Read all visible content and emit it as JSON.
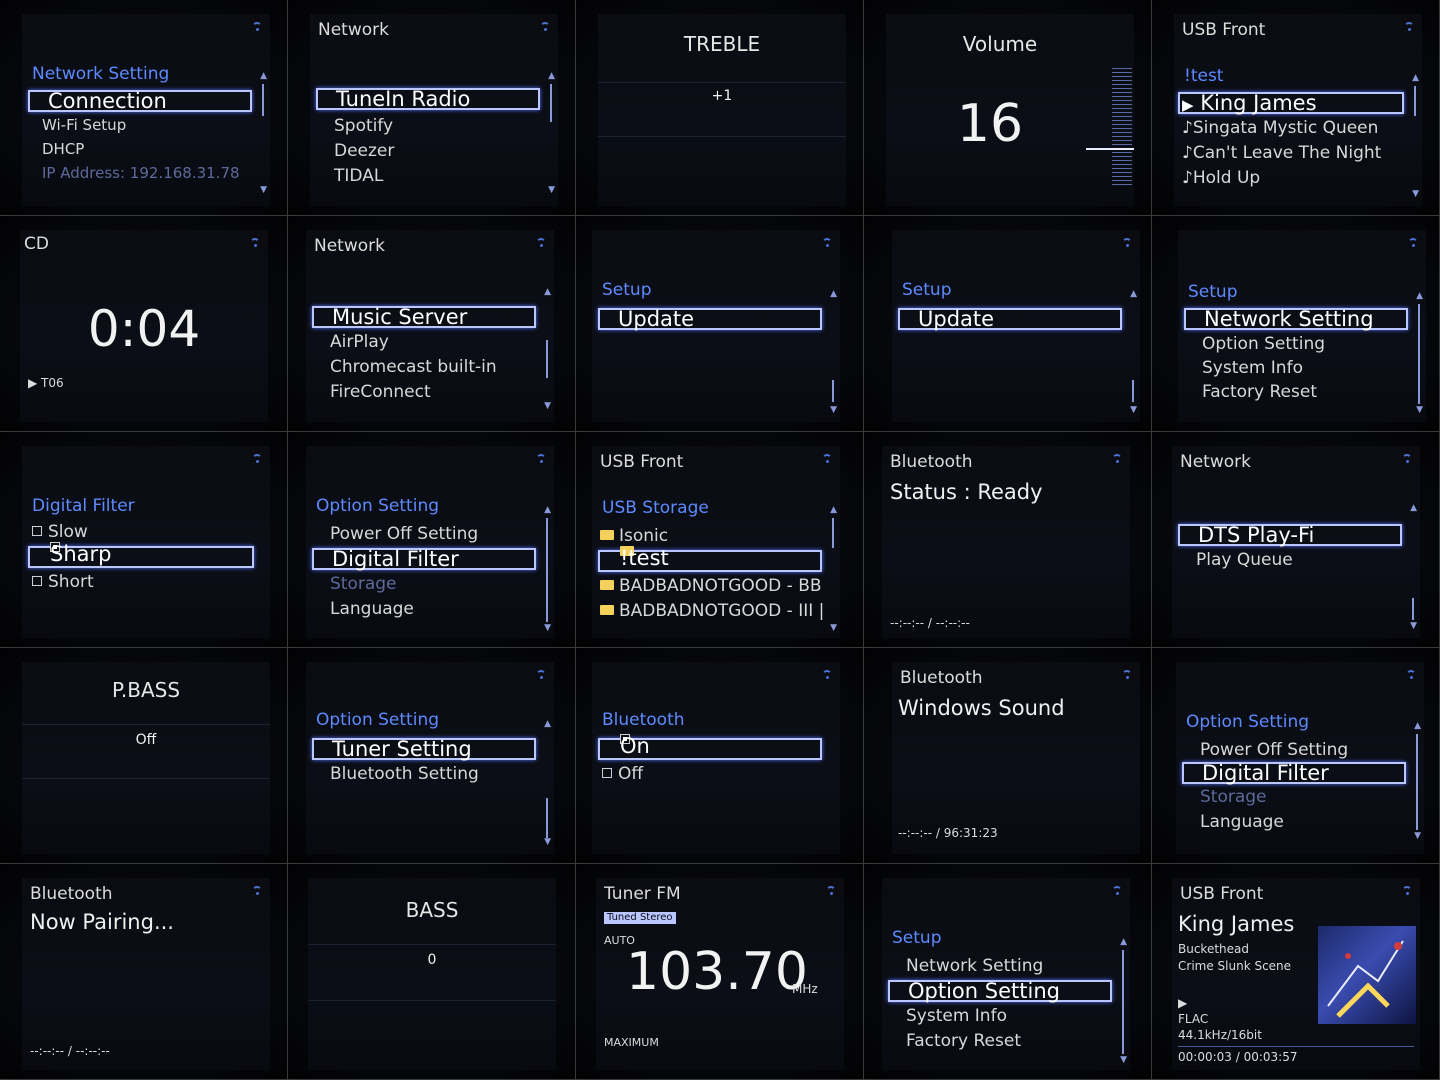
{
  "colors": {
    "accent": "#5e8aff",
    "highlight": "#b9c6ff",
    "background": "#000000"
  },
  "panels": {
    "p1": {
      "section": "Network Setting",
      "selected": "Connection",
      "items": [
        "Wi-Fi Setup",
        "DHCP"
      ],
      "ip": "IP Address: 192.168.31.78"
    },
    "p2": {
      "header": "Network",
      "selected": "TuneIn Radio",
      "items": [
        "Spotify",
        "Deezer",
        "TIDAL"
      ]
    },
    "p3": {
      "title": "TREBLE",
      "value": "+1"
    },
    "p4": {
      "title": "Volume",
      "value": "16"
    },
    "p5": {
      "header": "USB Front",
      "section": "!test",
      "selected": "King James",
      "items": [
        "Singata Mystic Queen",
        "Can't Leave The Night",
        "Hold Up"
      ]
    },
    "p6": {
      "header": "CD",
      "time": "0:04",
      "track": "T06"
    },
    "p7": {
      "header": "Network",
      "selected": "Music Server",
      "items": [
        "AirPlay",
        "Chromecast built-in",
        "FireConnect"
      ]
    },
    "p8": {
      "section": "Setup",
      "selected": "Update"
    },
    "p9": {
      "section": "Setup",
      "selected": "Update"
    },
    "p10": {
      "section": "Setup",
      "selected": "Network Setting",
      "items": [
        "Option Setting",
        "System Info",
        "Factory Reset"
      ]
    },
    "p11": {
      "section": "Digital Filter",
      "items": [
        "Slow",
        "Sharp",
        "Short"
      ]
    },
    "p12": {
      "section": "Option Setting",
      "item_above": "Power Off Setting",
      "selected": "Digital Filter",
      "storage": "Storage",
      "item_below": "Language"
    },
    "p13": {
      "header": "USB Front",
      "section": "USB Storage",
      "item_above": "Isonic",
      "selected": "!test",
      "items": [
        "BADBADNOTGOOD - BB",
        "BADBADNOTGOOD - III |"
      ]
    },
    "p14": {
      "header": "Bluetooth",
      "status": "Status : Ready",
      "time": "--:--:-- / --:--:--"
    },
    "p15": {
      "header": "Network",
      "selected": "DTS Play-Fi",
      "items": [
        "Play Queue"
      ]
    },
    "p16": {
      "title": "P.BASS",
      "value": "Off"
    },
    "p17": {
      "section": "Option Setting",
      "selected": "Tuner Setting",
      "items": [
        "Bluetooth Setting"
      ]
    },
    "p18": {
      "section": "Bluetooth",
      "selected": "On",
      "items": [
        "Off"
      ]
    },
    "p19": {
      "header": "Bluetooth",
      "device": "Windows Sound",
      "time": "--:--:-- / 96:31:23"
    },
    "p20": {
      "section": "Option Setting",
      "item_above": "Power Off Setting",
      "selected": "Digital Filter",
      "storage": "Storage",
      "item_below": "Language"
    },
    "p21": {
      "header": "Bluetooth",
      "status": "Now Pairing...",
      "time": "--:--:-- / --:--:--"
    },
    "p22": {
      "title": "BASS",
      "value": "0"
    },
    "p23": {
      "header": "Tuner FM",
      "badge": "Tuned Stereo",
      "mode": "AUTO",
      "frequency": "103.70",
      "unit": "MHz",
      "level": "MAXIMUM"
    },
    "p24": {
      "section": "Setup",
      "item_above": "Network Setting",
      "selected": "Option Setting",
      "items": [
        "System Info",
        "Factory Reset"
      ]
    },
    "p25": {
      "header": "USB Front",
      "title": "King James",
      "artist": "Buckethead",
      "album": "Crime Slunk Scene",
      "format": "FLAC",
      "rate": "44.1kHz/16bit",
      "time": "00:00:03 / 00:03:57"
    }
  }
}
